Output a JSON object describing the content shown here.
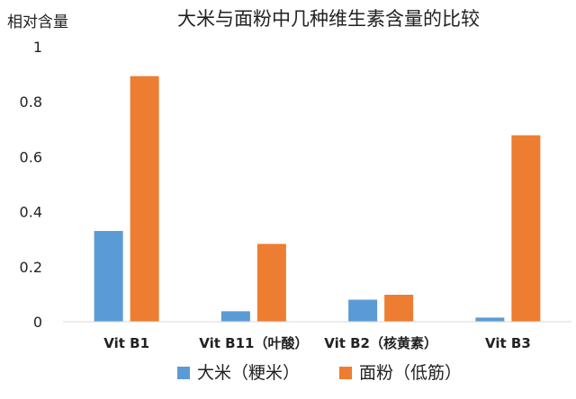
{
  "chart_data": {
    "type": "bar",
    "title": "大米与面粉中几种维生素含量的比较",
    "ylabel": "相对含量",
    "xlabel": "",
    "categories": [
      "Vit B1",
      "Vit B11（叶酸）",
      "Vit B2（核黄素）",
      "Vit B3"
    ],
    "yticks": [
      "0",
      "0.2",
      "0.4",
      "0.6",
      "0.8",
      "1"
    ],
    "ylim": [
      0,
      1
    ],
    "grid": false,
    "legend_position": "bottom",
    "series": [
      {
        "name": "大米（粳米）",
        "color": "#5B9BD5",
        "values": [
          0.33,
          0.038,
          0.08,
          0.015
        ]
      },
      {
        "name": "面粉（低筋）",
        "color": "#ED7D31",
        "values": [
          0.893,
          0.283,
          0.098,
          0.678
        ]
      }
    ]
  }
}
